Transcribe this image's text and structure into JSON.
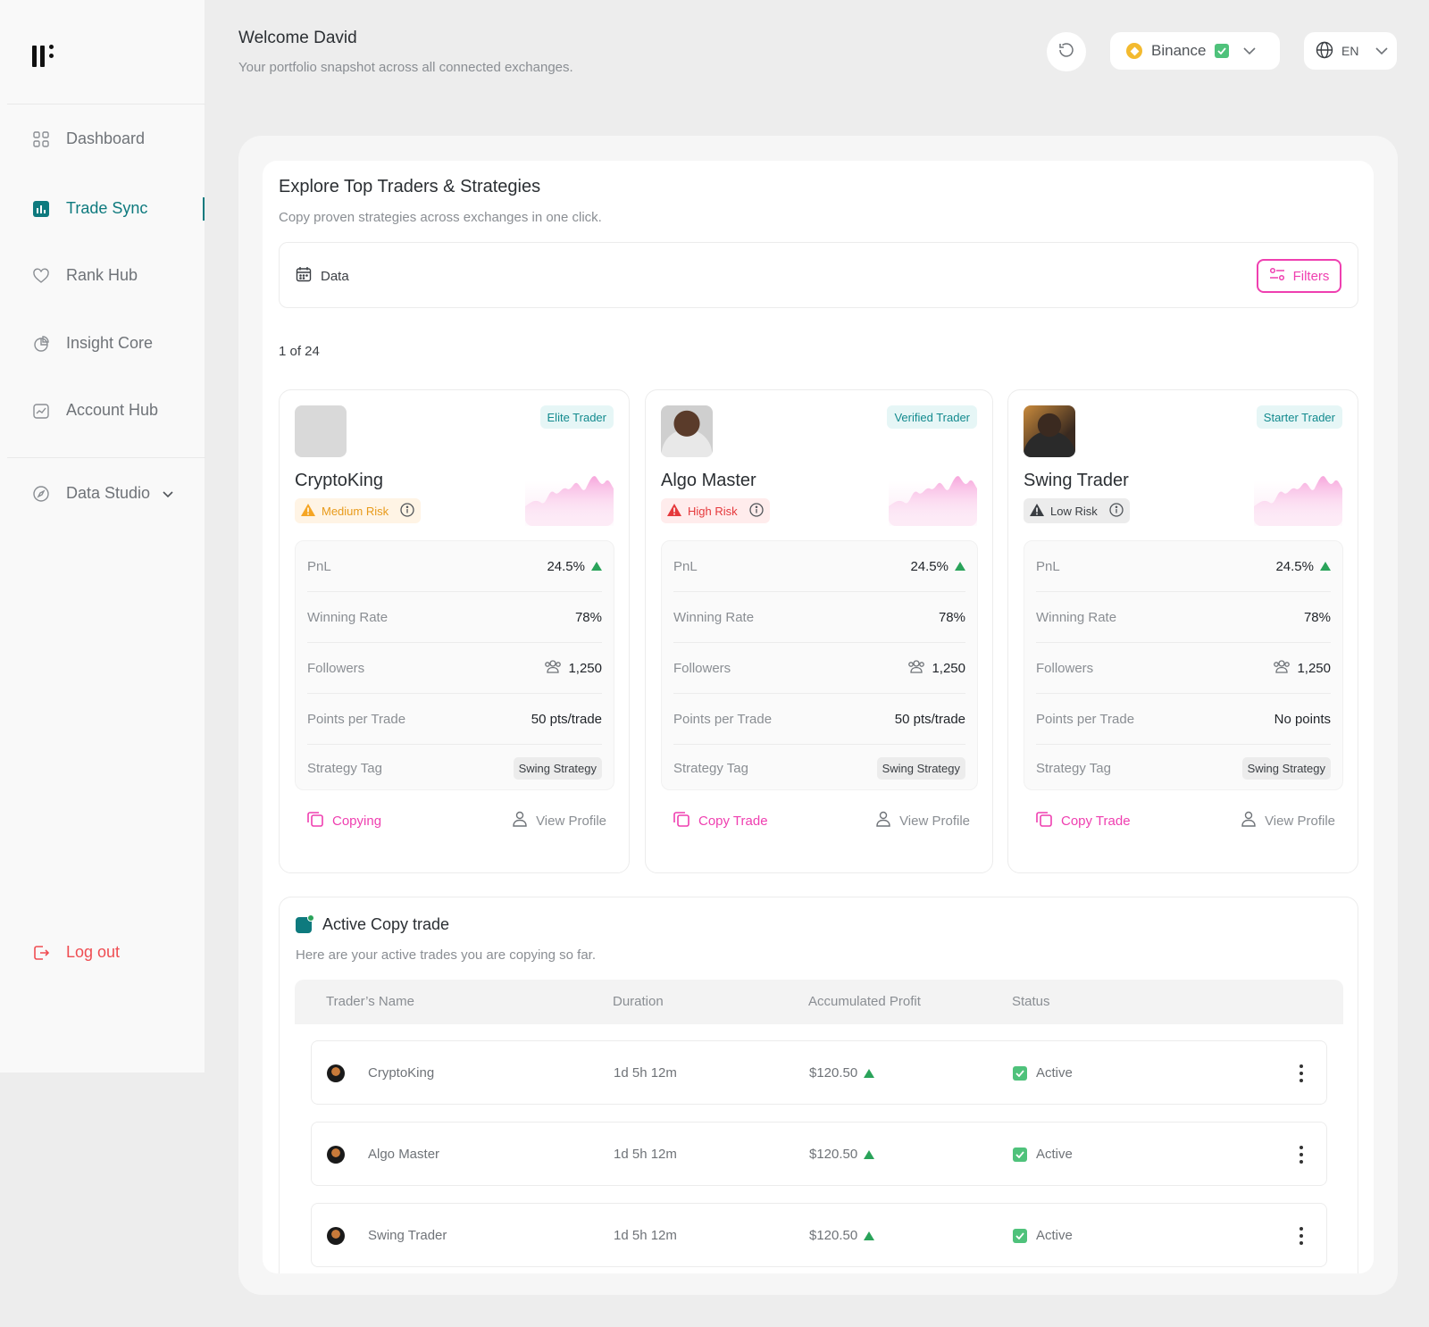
{
  "sidebar": {
    "items": [
      {
        "label": "Dashboard",
        "icon": "grid-icon"
      },
      {
        "label": "Trade Sync",
        "icon": "bar-chart-icon"
      },
      {
        "label": "Rank Hub",
        "icon": "heart-icon"
      },
      {
        "label": "Insight Core",
        "icon": "pie-chart-icon"
      },
      {
        "label": "Account Hub",
        "icon": "trend-icon"
      },
      {
        "label": "Data Studio",
        "icon": "compass-icon"
      }
    ],
    "logout_label": "Log out",
    "active_color": "#0e7a7e"
  },
  "header": {
    "title": "Welcome David",
    "subtitle": "Your portfolio snapshot across all connected exchanges.",
    "exchange": "Binance",
    "language": "EN"
  },
  "explore": {
    "title": "Explore Top Traders & Strategies",
    "subtitle": "Copy proven strategies across exchanges in one click.",
    "date_label": "Data",
    "filters_label": "Filters",
    "count": "1 of 24"
  },
  "stat_labels": {
    "pnl": "PnL",
    "winning_rate": "Winning Rate",
    "followers": "Followers",
    "points": "Points per Trade",
    "strategy": "Strategy Tag"
  },
  "traders": [
    {
      "name": "CryptoKing",
      "badge": "Elite Trader",
      "risk": "Medium Risk",
      "pnl": "24.5%",
      "winning_rate": "78%",
      "followers": "1,250",
      "points": "50 pts/trade",
      "strategy": "Swing Strategy",
      "copy_label": "Copying",
      "profile_label": "View Profile"
    },
    {
      "name": "Algo Master",
      "badge": "Verified Trader",
      "risk": "High Risk",
      "pnl": "24.5%",
      "winning_rate": "78%",
      "followers": "1,250",
      "points": "50 pts/trade",
      "strategy": "Swing Strategy",
      "copy_label": "Copy Trade",
      "profile_label": "View Profile"
    },
    {
      "name": "Swing Trader",
      "badge": "Starter Trader",
      "risk": "Low Risk",
      "pnl": "24.5%",
      "winning_rate": "78%",
      "followers": "1,250",
      "points": "No points",
      "strategy": "Swing Strategy",
      "copy_label": "Copy Trade",
      "profile_label": "View Profile"
    }
  ],
  "active_trades": {
    "title": "Active Copy trade",
    "subtitle": "Here are your active trades you are copying so far.",
    "columns": [
      "Trader’s Name",
      "Duration",
      "Accumulated Profit",
      "Status"
    ],
    "rows": [
      {
        "name": "CryptoKing",
        "duration": "1d 5h 12m",
        "profit": "$120.50",
        "status": "Active"
      },
      {
        "name": "Algo Master",
        "duration": "1d 5h 12m",
        "profit": "$120.50",
        "status": "Active"
      },
      {
        "name": "Swing Trader",
        "duration": "1d 5h 12m",
        "profit": "$120.50",
        "status": "Active"
      }
    ]
  },
  "colors": {
    "accent_pink": "#ef3fb0",
    "teal": "#0e7a7e",
    "positive": "#2aa35a",
    "logout": "#ef4d52"
  }
}
